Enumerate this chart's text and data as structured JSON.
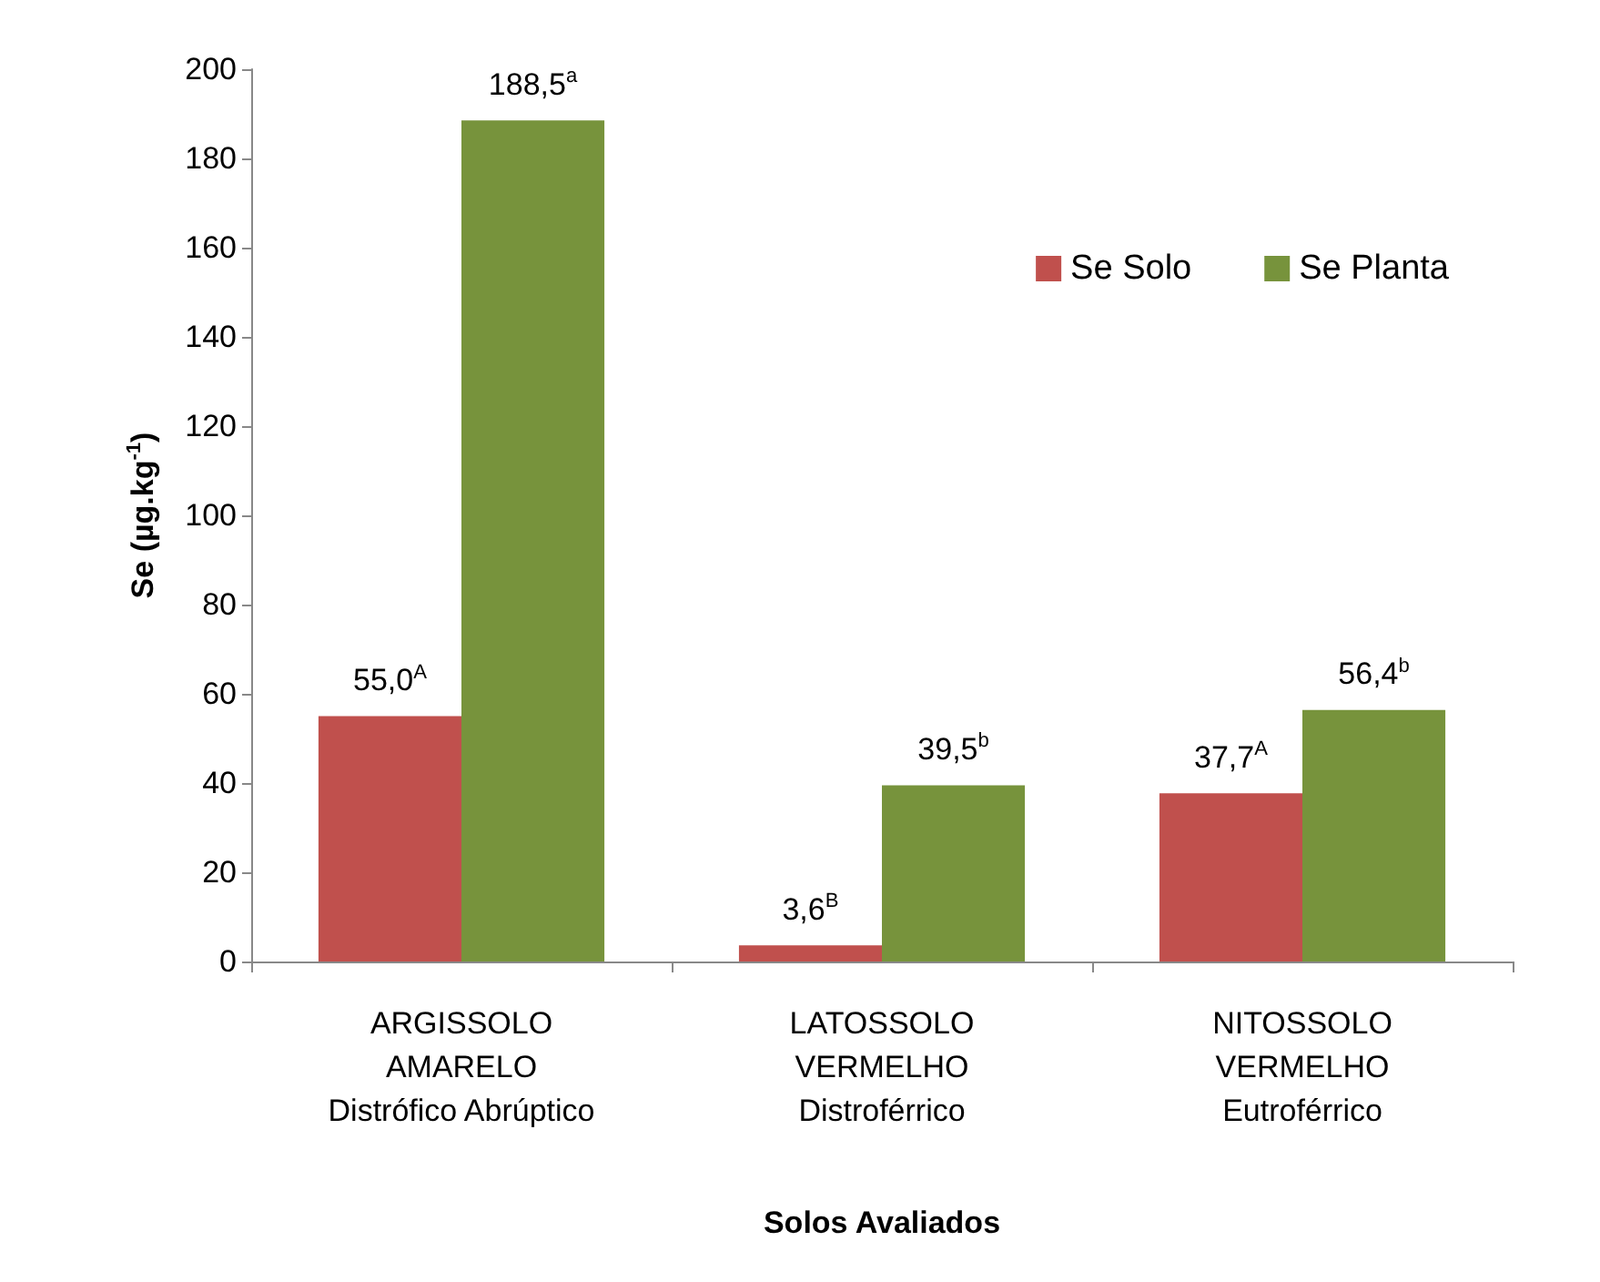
{
  "chart_data": {
    "type": "bar",
    "xlabel": "Solos Avaliados",
    "ylabel": "Se (µg.kg$^{-1}$)",
    "categories": [
      "ARGISSOLO\nAMARELO\nDistrófico Abrúptico",
      "LATOSSOLO\nVERMELHO\nDistroférrico",
      "NITOSSOLO\nVERMELHO\nEutroférrico"
    ],
    "series": [
      {
        "name": "Se Solo",
        "color": "#c0504d",
        "values": [
          55.0,
          3.6,
          37.7
        ],
        "value_labels": [
          "55,0$^{A}$",
          "3,6$^{B}$",
          "37,7$^{A}$"
        ]
      },
      {
        "name": "Se Planta",
        "color": "#77933c",
        "values": [
          188.5,
          39.5,
          56.4
        ],
        "value_labels": [
          "188,5$^{a}$",
          "39,5$^{b}$",
          "56,4$^{b}$"
        ]
      }
    ],
    "ylim": [
      0,
      200
    ],
    "yticks": [
      0,
      20,
      40,
      60,
      80,
      100,
      120,
      140,
      160,
      180,
      200
    ],
    "grid": false,
    "legend": "top right"
  }
}
